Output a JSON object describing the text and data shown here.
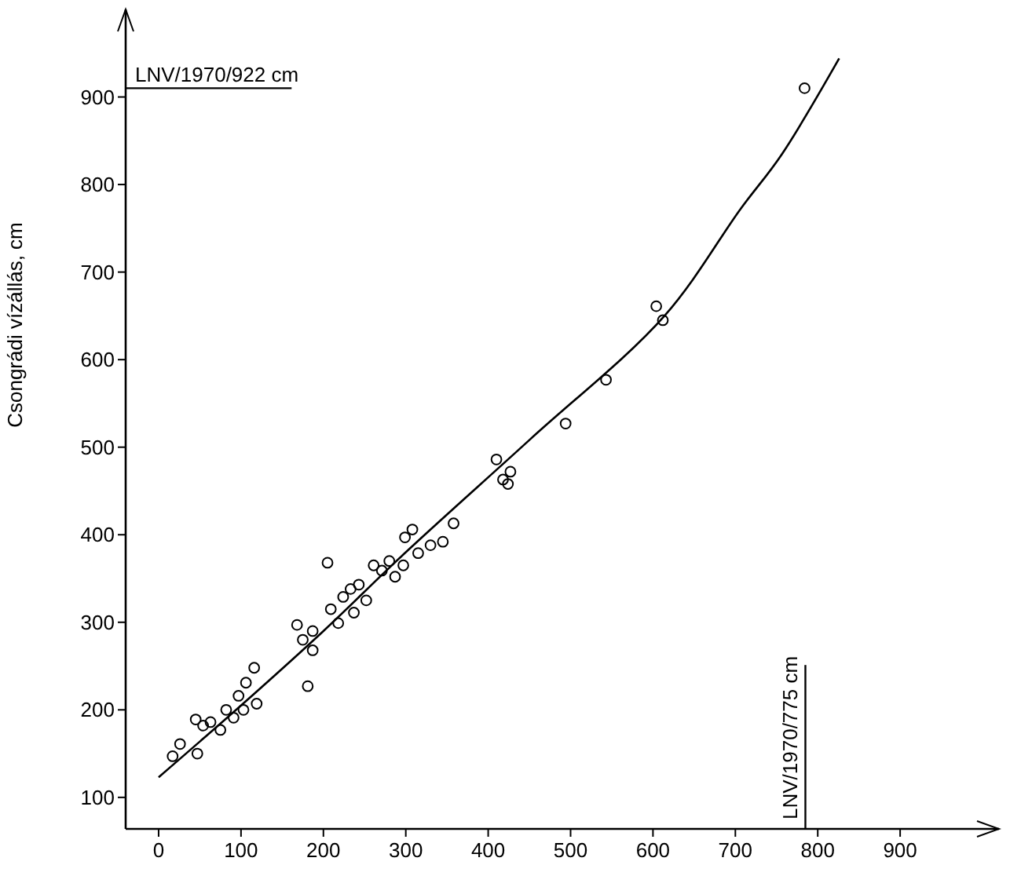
{
  "chart_data": {
    "type": "scatter",
    "ylabel": "Csongrádi vízállás, cm",
    "grid": false,
    "xlim": [
      -40,
      1020
    ],
    "ylim": [
      64,
      1000
    ],
    "xticks": [
      0,
      100,
      200,
      300,
      400,
      500,
      600,
      700,
      800,
      900
    ],
    "yticks": [
      100,
      200,
      300,
      400,
      500,
      600,
      700,
      800,
      900
    ],
    "series": [
      {
        "marker": "circle",
        "color": "#000000",
        "x": [
          17,
          26,
          47,
          45,
          54,
          63,
          75,
          82,
          91,
          97,
          103,
          106,
          116,
          119,
          168,
          175,
          187,
          187,
          181,
          205,
          209,
          218,
          224,
          233,
          237,
          243,
          252,
          261,
          271,
          280,
          287,
          297,
          299,
          308,
          315,
          330,
          345,
          358,
          410,
          418,
          427,
          424,
          494,
          543,
          604,
          612,
          784
        ],
        "values": [
          147,
          161,
          150,
          189,
          182,
          186,
          177,
          200,
          191,
          216,
          200,
          231,
          248,
          207,
          297,
          280,
          290,
          268,
          227,
          368,
          315,
          299,
          329,
          338,
          311,
          343,
          325,
          365,
          359,
          370,
          352,
          365,
          397,
          406,
          379,
          388,
          392,
          413,
          486,
          463,
          472,
          458,
          527,
          577,
          661,
          645,
          910
        ]
      },
      {
        "type": "line",
        "color": "#000000",
        "x": [
          0,
          100,
          200,
          300,
          451,
          614,
          707,
          756,
          826
        ],
        "values": [
          123,
          205,
          290,
          380,
          509,
          650,
          773,
          834,
          944
        ]
      }
    ],
    "ref_lines": [
      {
        "axis": "y",
        "value": 910,
        "label": "LNV/1970/922 cm",
        "color": "#000000"
      },
      {
        "axis": "x",
        "value": 785,
        "label": "LNV/1970/775 cm",
        "color": "#000000"
      }
    ]
  }
}
